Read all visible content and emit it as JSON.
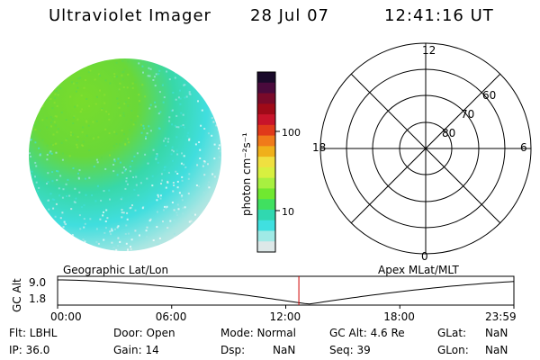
{
  "header": {
    "instrument": "Ultraviolet Imager",
    "date": "28 Jul 07",
    "time": "12:41:16 UT"
  },
  "colorbar": {
    "unit_label": "photon cm⁻²s⁻¹",
    "ticks": [
      "100",
      "10"
    ],
    "colors": [
      "#1a0a2a",
      "#4a0a3c",
      "#7a0a2a",
      "#a00a18",
      "#c8142a",
      "#e03a1a",
      "#f07a1a",
      "#f0b01a",
      "#f0e040",
      "#d8f040",
      "#a8f040",
      "#70e830",
      "#40e060",
      "#30d8b0",
      "#40e0e0",
      "#a0eae6",
      "#dde8e8"
    ]
  },
  "polar_plot": {
    "mlt_labels": {
      "top": "12",
      "left": "18",
      "right": "6",
      "bottom": "0"
    },
    "lat_labels": [
      "60",
      "70",
      "80"
    ]
  },
  "orbit_plot": {
    "left_label": "Geographic Lat/Lon",
    "right_label": "Apex MLat/MLT",
    "y_axis_label": "GC Alt",
    "y_ticks": [
      "9.0",
      "1.8"
    ],
    "x_ticks": [
      "00:00",
      "06:00",
      "12:00",
      "18:00",
      "23:59"
    ],
    "current_time_marker_hours": 12.69
  },
  "info": {
    "flt": "Flt: LBHL",
    "ip": "IP: 36.0",
    "door": "Door: Open",
    "gain": "Gain: 14",
    "mode": "Mode: Normal",
    "dsp": "Dsp:",
    "dsp_value": "NaN",
    "gc_alt": "GC Alt: 4.6 Re",
    "seq": "Seq: 39",
    "glat": "GLat:",
    "glat_value": "NaN",
    "glon": "GLon:",
    "glon_value": "NaN"
  }
}
